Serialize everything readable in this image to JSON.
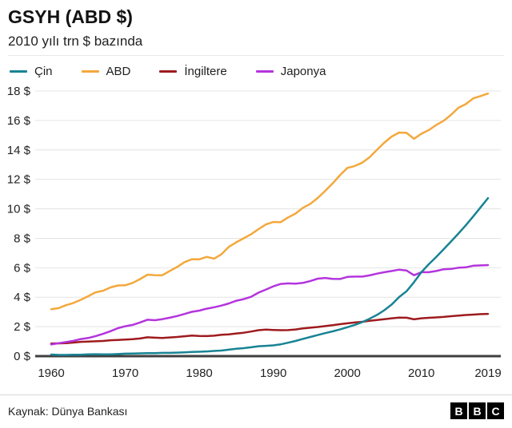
{
  "header": {
    "title": "GSYH (ABD $)",
    "subtitle": "2010 yılı trn $ bazında"
  },
  "footer": {
    "source": "Kaynak: Dünya Bankası",
    "logo_letters": [
      "B",
      "B",
      "C"
    ]
  },
  "colors": {
    "grid": "#e4e4e4",
    "axis_baseline": "#3f3f3f",
    "cin": "#188394",
    "abd": "#f3a83b",
    "ingiltere": "#9e1b1e",
    "japonya": "#b434dd"
  },
  "chart_data": {
    "type": "line",
    "title": "GSYH (ABD $)",
    "subtitle": "2010 yılı trn $ bazında",
    "ylim": [
      0,
      18
    ],
    "ytick_step": 2,
    "ytick_suffix": " $",
    "xticks": [
      1960,
      1970,
      1980,
      1990,
      2000,
      2010,
      2019
    ],
    "grid": "horizontal",
    "legend_position": "top",
    "years": [
      1960,
      1961,
      1962,
      1963,
      1964,
      1965,
      1966,
      1967,
      1968,
      1969,
      1970,
      1971,
      1972,
      1973,
      1974,
      1975,
      1976,
      1977,
      1978,
      1979,
      1980,
      1981,
      1982,
      1983,
      1984,
      1985,
      1986,
      1987,
      1988,
      1989,
      1990,
      1991,
      1992,
      1993,
      1994,
      1995,
      1996,
      1997,
      1998,
      1999,
      2000,
      2001,
      2002,
      2003,
      2004,
      2005,
      2006,
      2007,
      2008,
      2009,
      2010,
      2011,
      2012,
      2013,
      2014,
      2015,
      2016,
      2017,
      2018,
      2019
    ],
    "series": [
      {
        "name": "Çin",
        "color": "#188394",
        "values": [
          0.11,
          0.08,
          0.08,
          0.09,
          0.1,
          0.12,
          0.13,
          0.12,
          0.12,
          0.14,
          0.17,
          0.18,
          0.19,
          0.2,
          0.2,
          0.22,
          0.22,
          0.24,
          0.26,
          0.28,
          0.3,
          0.32,
          0.35,
          0.38,
          0.44,
          0.5,
          0.54,
          0.6,
          0.67,
          0.7,
          0.73,
          0.8,
          0.91,
          1.03,
          1.17,
          1.3,
          1.43,
          1.56,
          1.68,
          1.81,
          1.96,
          2.12,
          2.31,
          2.54,
          2.8,
          3.12,
          3.51,
          4.01,
          4.41,
          5.02,
          5.7,
          6.24,
          6.73,
          7.25,
          7.78,
          8.32,
          8.88,
          9.48,
          10.1,
          10.73
        ]
      },
      {
        "name": "ABD",
        "color": "#f3a83b",
        "values": [
          3.19,
          3.26,
          3.46,
          3.61,
          3.82,
          4.07,
          4.33,
          4.44,
          4.66,
          4.8,
          4.81,
          4.97,
          5.23,
          5.53,
          5.5,
          5.49,
          5.78,
          6.05,
          6.38,
          6.58,
          6.57,
          6.74,
          6.62,
          6.92,
          7.42,
          7.73,
          8.0,
          8.28,
          8.62,
          8.94,
          9.11,
          9.1,
          9.42,
          9.68,
          10.07,
          10.34,
          10.74,
          11.22,
          11.72,
          12.28,
          12.78,
          12.91,
          13.13,
          13.5,
          14.01,
          14.5,
          14.91,
          15.18,
          15.16,
          14.76,
          15.1,
          15.35,
          15.69,
          15.98,
          16.38,
          16.86,
          17.11,
          17.5,
          17.66,
          17.83
        ]
      },
      {
        "name": "İngiltere",
        "color": "#9e1b1e",
        "values": [
          0.85,
          0.87,
          0.88,
          0.92,
          0.97,
          0.99,
          1.01,
          1.03,
          1.08,
          1.1,
          1.12,
          1.15,
          1.2,
          1.28,
          1.25,
          1.23,
          1.27,
          1.3,
          1.35,
          1.4,
          1.37,
          1.36,
          1.39,
          1.45,
          1.48,
          1.54,
          1.59,
          1.67,
          1.76,
          1.8,
          1.78,
          1.76,
          1.77,
          1.81,
          1.88,
          1.93,
          1.98,
          2.04,
          2.1,
          2.17,
          2.23,
          2.28,
          2.33,
          2.4,
          2.45,
          2.51,
          2.57,
          2.62,
          2.61,
          2.5,
          2.57,
          2.6,
          2.63,
          2.66,
          2.71,
          2.75,
          2.79,
          2.82,
          2.85,
          2.87
        ]
      },
      {
        "name": "Japonya",
        "color": "#b434dd",
        "values": [
          0.79,
          0.88,
          0.96,
          1.04,
          1.16,
          1.23,
          1.36,
          1.51,
          1.69,
          1.9,
          2.03,
          2.12,
          2.29,
          2.47,
          2.44,
          2.51,
          2.61,
          2.72,
          2.86,
          3.01,
          3.09,
          3.22,
          3.32,
          3.43,
          3.58,
          3.76,
          3.87,
          4.03,
          4.31,
          4.52,
          4.74,
          4.9,
          4.94,
          4.92,
          4.97,
          5.1,
          5.26,
          5.31,
          5.25,
          5.24,
          5.38,
          5.4,
          5.4,
          5.48,
          5.6,
          5.7,
          5.78,
          5.87,
          5.81,
          5.49,
          5.7,
          5.7,
          5.78,
          5.9,
          5.92,
          6.0,
          6.03,
          6.14,
          6.16,
          6.18
        ]
      }
    ]
  }
}
